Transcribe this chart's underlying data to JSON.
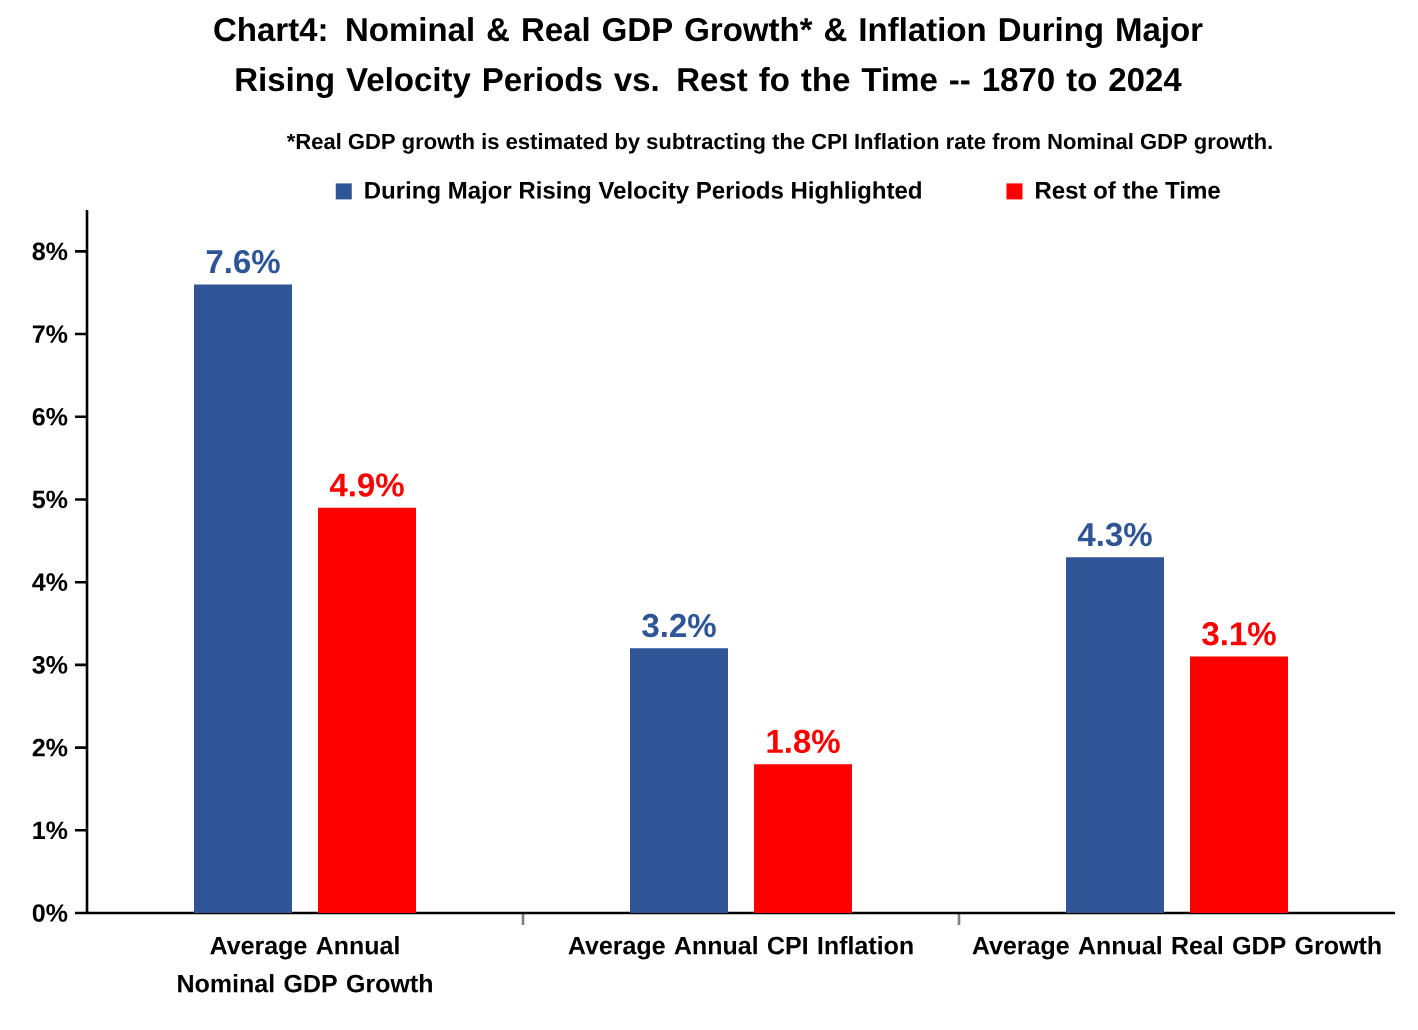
{
  "chart_data": {
    "type": "bar",
    "title": "Chart4: Nominal & Real GDP Growth* & Inflation During Major Rising Velocity Periods vs. Rest fo the Time -- 1870 to 2024",
    "subtitle": "*Real GDP growth is estimated by subtracting the CPI Inflation rate from Nominal GDP growth.",
    "categories": [
      "Average Annual Nominal GDP Growth",
      "Average Annual CPI Inflation",
      "Average Annual Real GDP Growth"
    ],
    "series": [
      {
        "name": "During Major Rising Velocity Periods Highlighted",
        "color": "#2f5597",
        "values": [
          7.6,
          3.2,
          4.3
        ],
        "value_labels": [
          "7.6%",
          "3.2%",
          "4.3%"
        ]
      },
      {
        "name": "Rest of the Time",
        "color": "#ff0000",
        "values": [
          4.9,
          1.8,
          3.1
        ],
        "value_labels": [
          "4.9%",
          "1.8%",
          "3.1%"
        ]
      }
    ],
    "ylim": [
      0,
      8.5
    ],
    "yticks": [
      {
        "value": 0,
        "label": "0%"
      },
      {
        "value": 1,
        "label": "1%"
      },
      {
        "value": 2,
        "label": "2%"
      },
      {
        "value": 3,
        "label": "3%"
      },
      {
        "value": 4,
        "label": "4%"
      },
      {
        "value": 5,
        "label": "5%"
      },
      {
        "value": 6,
        "label": "6%"
      },
      {
        "value": 7,
        "label": "7%"
      },
      {
        "value": 8,
        "label": "8%"
      }
    ],
    "grid": false,
    "legend": "top"
  }
}
